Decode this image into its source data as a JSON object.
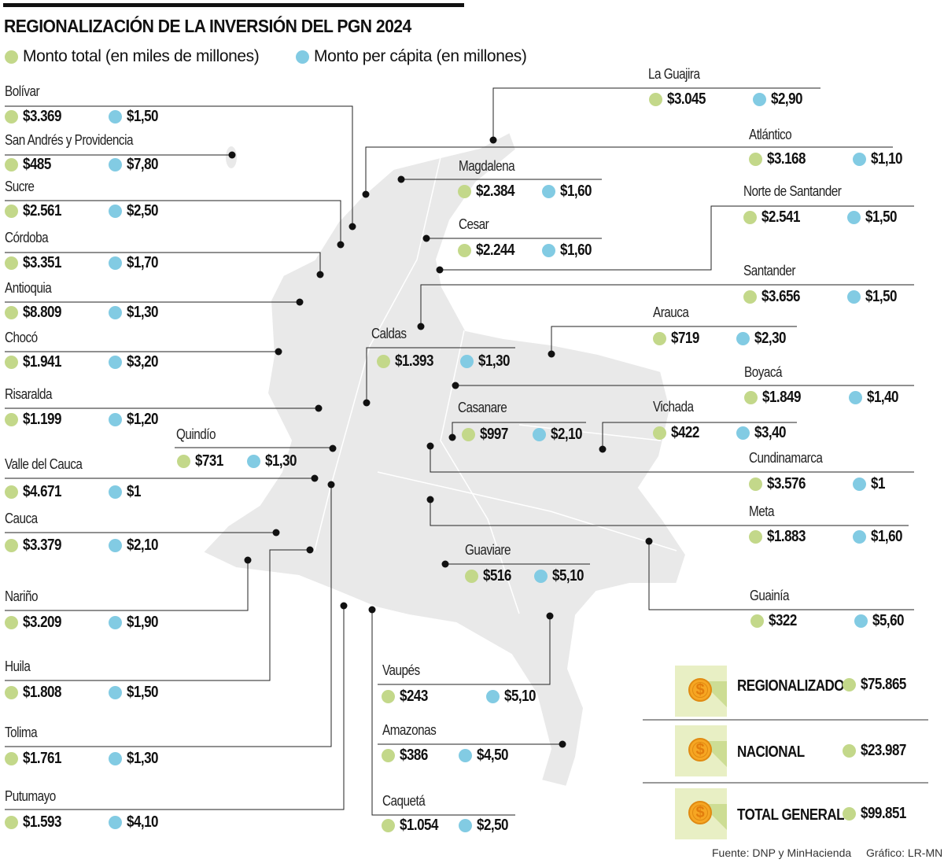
{
  "title": "REGIONALIZACIÓN DE LA INVERSIÓN DEL PGN 2024",
  "legend": {
    "total_label": "Monto total (en miles de millones)",
    "percapita_label": "Monto per cápita (en millones)"
  },
  "colors": {
    "total": "#c3d88a",
    "percapita": "#82cbe3",
    "map": "#e9e9e9",
    "map_border": "#ffffff",
    "coin": "#f6a623",
    "icon_bg": "#e8efc4"
  },
  "regions": [
    {
      "name": "Bolívar",
      "total": "$3.369",
      "percapita": "$1,50"
    },
    {
      "name": "San Andrés y Providencia",
      "total": "$485",
      "percapita": "$7,80"
    },
    {
      "name": "Sucre",
      "total": "$2.561",
      "percapita": "$2,50"
    },
    {
      "name": "Córdoba",
      "total": "$3.351",
      "percapita": "$1,70"
    },
    {
      "name": "Antioquia",
      "total": "$8.809",
      "percapita": "$1,30"
    },
    {
      "name": "Chocó",
      "total": "$1.941",
      "percapita": "$3,20"
    },
    {
      "name": "Risaralda",
      "total": "$1.199",
      "percapita": "$1,20"
    },
    {
      "name": "Quindío",
      "total": "$731",
      "percapita": "$1,30"
    },
    {
      "name": "Valle del Cauca",
      "total": "$4.671",
      "percapita": "$1"
    },
    {
      "name": "Cauca",
      "total": "$3.379",
      "percapita": "$2,10"
    },
    {
      "name": "Nariño",
      "total": "$3.209",
      "percapita": "$1,90"
    },
    {
      "name": "Huila",
      "total": "$1.808",
      "percapita": "$1,50"
    },
    {
      "name": "Tolima",
      "total": "$1.761",
      "percapita": "$1,30"
    },
    {
      "name": "Putumayo",
      "total": "$1.593",
      "percapita": "$4,10"
    },
    {
      "name": "La Guajira",
      "total": "$3.045",
      "percapita": "$2,90"
    },
    {
      "name": "Atlántico",
      "total": "$3.168",
      "percapita": "$1,10"
    },
    {
      "name": "Magdalena",
      "total": "$2.384",
      "percapita": "$1,60"
    },
    {
      "name": "Cesar",
      "total": "$2.244",
      "percapita": "$1,60"
    },
    {
      "name": "Norte de Santander",
      "total": "$2.541",
      "percapita": "$1,50"
    },
    {
      "name": "Santander",
      "total": "$3.656",
      "percapita": "$1,50"
    },
    {
      "name": "Arauca",
      "total": "$719",
      "percapita": "$2,30"
    },
    {
      "name": "Caldas",
      "total": "$1.393",
      "percapita": "$1,30"
    },
    {
      "name": "Boyacá",
      "total": "$1.849",
      "percapita": "$1,40"
    },
    {
      "name": "Casanare",
      "total": "$997",
      "percapita": "$2,10"
    },
    {
      "name": "Vichada",
      "total": "$422",
      "percapita": "$3,40"
    },
    {
      "name": "Cundinamarca",
      "total": "$3.576",
      "percapita": "$1"
    },
    {
      "name": "Meta",
      "total": "$1.883",
      "percapita": "$1,60"
    },
    {
      "name": "Guaviare",
      "total": "$516",
      "percapita": "$5,10"
    },
    {
      "name": "Guainía",
      "total": "$322",
      "percapita": "$5,60"
    },
    {
      "name": "Vaupés",
      "total": "$243",
      "percapita": "$5,10"
    },
    {
      "name": "Amazonas",
      "total": "$386",
      "percapita": "$4,50"
    },
    {
      "name": "Caquetá",
      "total": "$1.054",
      "percapita": "$2,50"
    }
  ],
  "summary": [
    {
      "label": "REGIONALIZADO",
      "value": "$75.865",
      "icon": "dollar-coin-icon"
    },
    {
      "label": "NACIONAL",
      "value": "$23.987",
      "icon": "dollar-coin-icon"
    },
    {
      "label": "TOTAL GENERAL",
      "value": "$99.851",
      "icon": "dollar-coin-icon"
    }
  ],
  "source": "Fuente: DNP y MinHacienda",
  "credit": "Gráfico: LR-MN"
}
